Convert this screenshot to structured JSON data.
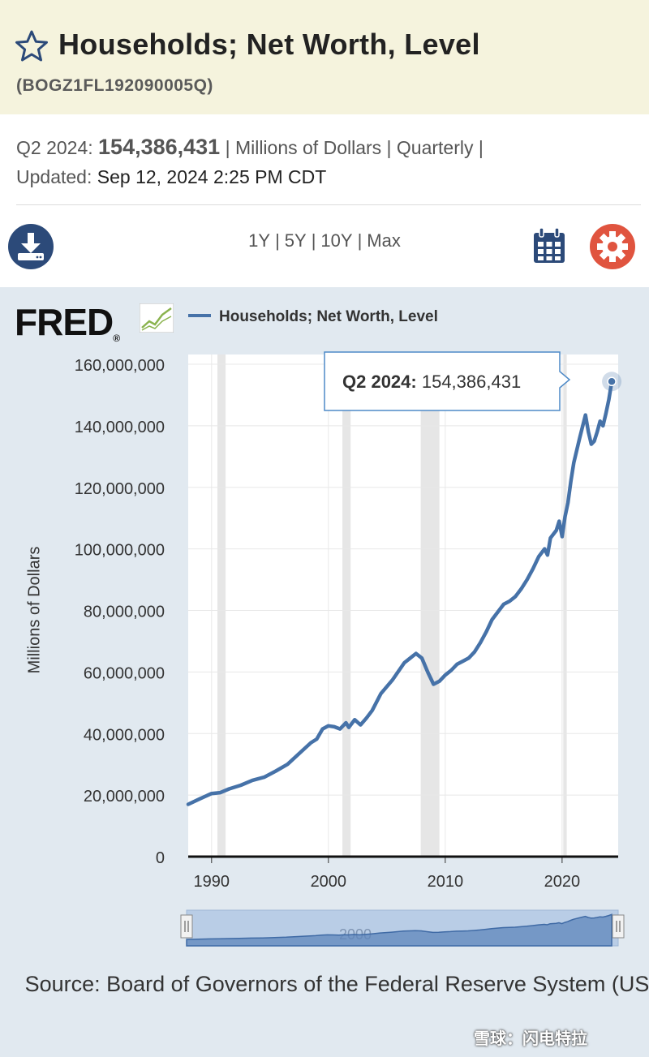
{
  "header": {
    "title": "Households; Net Worth, Level",
    "series_id": "(BOGZ1FL192090005Q)"
  },
  "meta": {
    "period": "Q2 2024:",
    "value": "154,386,431",
    "units": "| Millions of Dollars | Quarterly |",
    "updated_label": "Updated:",
    "updated_value": "Sep 12, 2024 2:25 PM CDT"
  },
  "toolbar": {
    "ranges": [
      "1Y",
      "5Y",
      "10Y",
      "Max"
    ],
    "download_icon": "download-icon",
    "calendar_icon": "calendar-icon",
    "settings_icon": "gear-icon"
  },
  "brand": {
    "logo": "FRED",
    "reg": "®"
  },
  "legend": {
    "label": "Households; Net Worth, Level"
  },
  "tooltip": {
    "period": "Q2 2024:",
    "value": "154,386,431"
  },
  "navigator": {
    "label": "2000"
  },
  "source": {
    "text": "Source: Board of Governors of the Federal Reserve System (US)"
  },
  "watermark": {
    "text": "雪球：闪电特拉"
  },
  "colors": {
    "series": "#4672a8",
    "title_band": "#f5f3dd",
    "chart_bg": "#e1e9f0",
    "recession": "#e6e6e6",
    "gear": "#e0543f",
    "icon_blue": "#2c4a79"
  },
  "chart_data": {
    "type": "line",
    "title": "Households; Net Worth, Level",
    "xlabel": "",
    "ylabel": "Millions of Dollars",
    "xlim": [
      1988,
      2024.8
    ],
    "ylim": [
      0,
      160000000
    ],
    "x_ticks": [
      1990,
      2000,
      2010,
      2020
    ],
    "x_tick_labels": [
      "1990",
      "2000",
      "2010",
      "2020"
    ],
    "y_ticks": [
      0,
      20000000,
      40000000,
      60000000,
      80000000,
      100000000,
      120000000,
      140000000,
      160000000
    ],
    "y_tick_labels": [
      "0",
      "20,000,000",
      "40,000,000",
      "60,000,000",
      "80,000,000",
      "100,000,000",
      "120,000,000",
      "140,000,000",
      "160,000,000"
    ],
    "recessions": [
      [
        1990.5,
        1991.2
      ],
      [
        2001.2,
        2001.9
      ],
      [
        2007.9,
        2009.5
      ],
      [
        2020.1,
        2020.4
      ]
    ],
    "grid": true,
    "series": [
      {
        "name": "Households; Net Worth, Level",
        "x": [
          1988.0,
          1989.0,
          1990.0,
          1990.75,
          1991.5,
          1992.5,
          1993.5,
          1994.5,
          1995.5,
          1996.5,
          1997.5,
          1998.5,
          1999.0,
          1999.5,
          2000.0,
          2000.5,
          2001.0,
          2001.5,
          2001.75,
          2002.25,
          2002.75,
          2003.25,
          2003.75,
          2004.5,
          2005.5,
          2006.5,
          2007.0,
          2007.5,
          2008.0,
          2008.5,
          2009.0,
          2009.5,
          2010.0,
          2010.5,
          2011.0,
          2011.5,
          2012.0,
          2012.5,
          2013.0,
          2013.5,
          2014.0,
          2014.5,
          2015.0,
          2015.5,
          2016.0,
          2016.5,
          2017.0,
          2017.5,
          2018.0,
          2018.5,
          2018.75,
          2019.0,
          2019.5,
          2019.75,
          2020.0,
          2020.25,
          2020.5,
          2020.75,
          2021.0,
          2021.5,
          2022.0,
          2022.25,
          2022.5,
          2022.75,
          2023.0,
          2023.25,
          2023.5,
          2023.75,
          2024.0,
          2024.25
        ],
        "values": [
          17000000,
          18800000,
          20500000,
          20800000,
          22000000,
          23200000,
          24800000,
          25800000,
          27800000,
          30000000,
          33500000,
          37000000,
          38200000,
          41500000,
          42500000,
          42200000,
          41500000,
          43500000,
          42000000,
          44500000,
          42800000,
          45000000,
          47500000,
          53000000,
          57500000,
          63000000,
          64500000,
          66000000,
          64500000,
          60000000,
          56000000,
          57000000,
          59000000,
          60500000,
          62500000,
          63500000,
          64500000,
          66500000,
          69500000,
          73000000,
          77000000,
          79500000,
          82000000,
          83000000,
          84500000,
          87000000,
          90000000,
          93500000,
          97500000,
          100000000,
          98000000,
          103500000,
          106000000,
          109000000,
          104000000,
          110500000,
          115000000,
          122000000,
          128000000,
          136000000,
          143500000,
          138000000,
          134000000,
          135000000,
          138000000,
          141500000,
          140000000,
          144000000,
          148500000,
          154386431
        ]
      }
    ]
  }
}
